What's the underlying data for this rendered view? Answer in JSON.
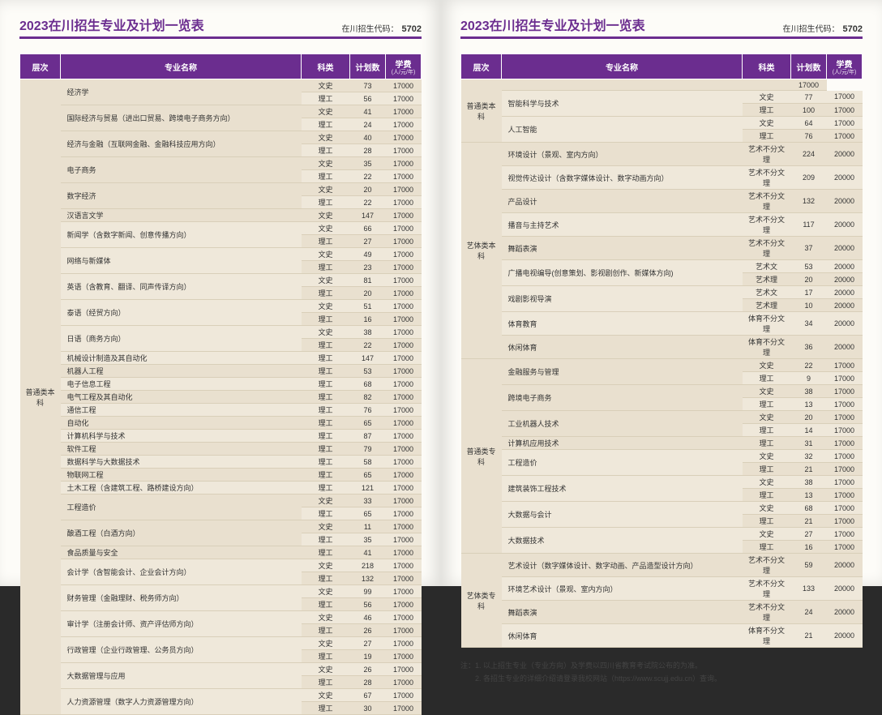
{
  "header": {
    "title": "2023在川招生专业及计划一览表",
    "code_label": "在川招生代码：",
    "code": "5702"
  },
  "columns": {
    "level": "层次",
    "major": "专业名称",
    "category": "科类",
    "plan": "计划数",
    "fee": "学费",
    "fee_sub": "(人/元/年)"
  },
  "left": {
    "level": "普通类本科",
    "rows": [
      {
        "major": "经济学",
        "cat": "文史",
        "plan": "73",
        "fee": "17000"
      },
      {
        "major": "",
        "cat": "理工",
        "plan": "56",
        "fee": "17000"
      },
      {
        "major": "国际经济与贸易（进出口贸易、跨境电子商务方向）",
        "cat": "文史",
        "plan": "41",
        "fee": "17000"
      },
      {
        "major": "",
        "cat": "理工",
        "plan": "24",
        "fee": "17000"
      },
      {
        "major": "经济与金融（互联网金融、金融科技应用方向）",
        "cat": "文史",
        "plan": "40",
        "fee": "17000"
      },
      {
        "major": "",
        "cat": "理工",
        "plan": "28",
        "fee": "17000"
      },
      {
        "major": "电子商务",
        "cat": "文史",
        "plan": "35",
        "fee": "17000"
      },
      {
        "major": "",
        "cat": "理工",
        "plan": "22",
        "fee": "17000"
      },
      {
        "major": "数字经济",
        "cat": "文史",
        "plan": "20",
        "fee": "17000"
      },
      {
        "major": "",
        "cat": "理工",
        "plan": "22",
        "fee": "17000"
      },
      {
        "major": "汉语言文学",
        "cat": "文史",
        "plan": "147",
        "fee": "17000"
      },
      {
        "major": "新闻学（含数字新闻、创意传播方向）",
        "cat": "文史",
        "plan": "66",
        "fee": "17000"
      },
      {
        "major": "",
        "cat": "理工",
        "plan": "27",
        "fee": "17000"
      },
      {
        "major": "网络与新媒体",
        "cat": "文史",
        "plan": "49",
        "fee": "17000"
      },
      {
        "major": "",
        "cat": "理工",
        "plan": "23",
        "fee": "17000"
      },
      {
        "major": "英语（含教育、翻译、同声传译方向）",
        "cat": "文史",
        "plan": "81",
        "fee": "17000"
      },
      {
        "major": "",
        "cat": "理工",
        "plan": "20",
        "fee": "17000"
      },
      {
        "major": "泰语（经贸方向）",
        "cat": "文史",
        "plan": "51",
        "fee": "17000"
      },
      {
        "major": "",
        "cat": "理工",
        "plan": "16",
        "fee": "17000"
      },
      {
        "major": "日语（商务方向）",
        "cat": "文史",
        "plan": "38",
        "fee": "17000"
      },
      {
        "major": "",
        "cat": "理工",
        "plan": "22",
        "fee": "17000"
      },
      {
        "major": "机械设计制造及其自动化",
        "cat": "理工",
        "plan": "147",
        "fee": "17000"
      },
      {
        "major": "机器人工程",
        "cat": "理工",
        "plan": "53",
        "fee": "17000"
      },
      {
        "major": "电子信息工程",
        "cat": "理工",
        "plan": "68",
        "fee": "17000"
      },
      {
        "major": "电气工程及其自动化",
        "cat": "理工",
        "plan": "82",
        "fee": "17000"
      },
      {
        "major": "通信工程",
        "cat": "理工",
        "plan": "76",
        "fee": "17000"
      },
      {
        "major": "自动化",
        "cat": "理工",
        "plan": "65",
        "fee": "17000"
      },
      {
        "major": "计算机科学与技术",
        "cat": "理工",
        "plan": "87",
        "fee": "17000"
      },
      {
        "major": "软件工程",
        "cat": "理工",
        "plan": "79",
        "fee": "17000"
      },
      {
        "major": "数据科学与大数据技术",
        "cat": "理工",
        "plan": "58",
        "fee": "17000"
      },
      {
        "major": "物联网工程",
        "cat": "理工",
        "plan": "65",
        "fee": "17000"
      },
      {
        "major": "土木工程（含建筑工程、路桥建设方向）",
        "cat": "理工",
        "plan": "121",
        "fee": "17000"
      },
      {
        "major": "工程造价",
        "cat": "文史",
        "plan": "33",
        "fee": "17000"
      },
      {
        "major": "",
        "cat": "理工",
        "plan": "65",
        "fee": "17000"
      },
      {
        "major": "酿酒工程（白酒方向）",
        "cat": "文史",
        "plan": "11",
        "fee": "17000"
      },
      {
        "major": "",
        "cat": "理工",
        "plan": "35",
        "fee": "17000"
      },
      {
        "major": "食品质量与安全",
        "cat": "理工",
        "plan": "41",
        "fee": "17000"
      },
      {
        "major": "会计学（含智能会计、企业会计方向）",
        "cat": "文史",
        "plan": "218",
        "fee": "17000"
      },
      {
        "major": "",
        "cat": "理工",
        "plan": "132",
        "fee": "17000"
      },
      {
        "major": "财务管理（金融理财、税务师方向）",
        "cat": "文史",
        "plan": "99",
        "fee": "17000"
      },
      {
        "major": "",
        "cat": "理工",
        "plan": "56",
        "fee": "17000"
      },
      {
        "major": "审计学（注册会计师、资产评估师方向）",
        "cat": "文史",
        "plan": "46",
        "fee": "17000"
      },
      {
        "major": "",
        "cat": "理工",
        "plan": "26",
        "fee": "17000"
      },
      {
        "major": "行政管理（企业行政管理、公务员方向）",
        "cat": "文史",
        "plan": "27",
        "fee": "17000"
      },
      {
        "major": "",
        "cat": "理工",
        "plan": "19",
        "fee": "17000"
      },
      {
        "major": "大数据管理与应用",
        "cat": "文史",
        "plan": "26",
        "fee": "17000"
      },
      {
        "major": "",
        "cat": "理工",
        "plan": "28",
        "fee": "17000"
      },
      {
        "major": "人力资源管理（数字人力资源管理方向）",
        "cat": "文史",
        "plan": "67",
        "fee": "17000"
      },
      {
        "major": "",
        "cat": "理工",
        "plan": "30",
        "fee": "17000"
      }
    ]
  },
  "right": {
    "groups": [
      {
        "level": "普通类本科",
        "rows": [
          {
            "major": "",
            "cat": "",
            "plan": "",
            "fee": "17000"
          },
          {
            "major": "智能科学与技术",
            "cat": "文史",
            "plan": "77",
            "fee": "17000"
          },
          {
            "major": "",
            "cat": "理工",
            "plan": "100",
            "fee": "17000"
          },
          {
            "major": "人工智能",
            "cat": "文史",
            "plan": "64",
            "fee": "17000"
          },
          {
            "major": "",
            "cat": "理工",
            "plan": "76",
            "fee": "17000"
          }
        ]
      },
      {
        "level": "艺体类本科",
        "rows": [
          {
            "major": "环境设计（景观、室内方向）",
            "cat": "艺术不分文理",
            "plan": "224",
            "fee": "20000"
          },
          {
            "major": "视觉传达设计（含数字媒体设计、数字动画方向）",
            "cat": "艺术不分文理",
            "plan": "209",
            "fee": "20000"
          },
          {
            "major": "产品设计",
            "cat": "艺术不分文理",
            "plan": "132",
            "fee": "20000"
          },
          {
            "major": "播音与主持艺术",
            "cat": "艺术不分文理",
            "plan": "117",
            "fee": "20000"
          },
          {
            "major": "舞蹈表演",
            "cat": "艺术不分文理",
            "plan": "37",
            "fee": "20000"
          },
          {
            "major": "广播电视编导(创意策划、影视剧创作、新媒体方向)",
            "cat": "艺术文",
            "plan": "53",
            "fee": "20000"
          },
          {
            "major": "",
            "cat": "艺术理",
            "plan": "20",
            "fee": "20000"
          },
          {
            "major": "戏剧影视导演",
            "cat": "艺术文",
            "plan": "17",
            "fee": "20000"
          },
          {
            "major": "",
            "cat": "艺术理",
            "plan": "10",
            "fee": "20000"
          },
          {
            "major": "体育教育",
            "cat": "体育不分文理",
            "plan": "34",
            "fee": "20000"
          },
          {
            "major": "休闲体育",
            "cat": "体育不分文理",
            "plan": "36",
            "fee": "20000"
          }
        ]
      },
      {
        "level": "普通类专科",
        "rows": [
          {
            "major": "金融服务与管理",
            "cat": "文史",
            "plan": "22",
            "fee": "17000"
          },
          {
            "major": "",
            "cat": "理工",
            "plan": "9",
            "fee": "17000"
          },
          {
            "major": "跨境电子商务",
            "cat": "文史",
            "plan": "38",
            "fee": "17000"
          },
          {
            "major": "",
            "cat": "理工",
            "plan": "13",
            "fee": "17000"
          },
          {
            "major": "工业机器人技术",
            "cat": "文史",
            "plan": "20",
            "fee": "17000"
          },
          {
            "major": "",
            "cat": "理工",
            "plan": "14",
            "fee": "17000"
          },
          {
            "major": "计算机应用技术",
            "cat": "理工",
            "plan": "31",
            "fee": "17000"
          },
          {
            "major": "工程造价",
            "cat": "文史",
            "plan": "32",
            "fee": "17000"
          },
          {
            "major": "",
            "cat": "理工",
            "plan": "21",
            "fee": "17000"
          },
          {
            "major": "建筑装饰工程技术",
            "cat": "文史",
            "plan": "38",
            "fee": "17000"
          },
          {
            "major": "",
            "cat": "理工",
            "plan": "13",
            "fee": "17000"
          },
          {
            "major": "大数据与会计",
            "cat": "文史",
            "plan": "68",
            "fee": "17000"
          },
          {
            "major": "",
            "cat": "理工",
            "plan": "21",
            "fee": "17000"
          },
          {
            "major": "大数据技术",
            "cat": "文史",
            "plan": "27",
            "fee": "17000"
          },
          {
            "major": "",
            "cat": "理工",
            "plan": "16",
            "fee": "17000"
          }
        ]
      },
      {
        "level": "艺体类专科",
        "rows": [
          {
            "major": "艺术设计（数字媒体设计、数字动画、产品造型设计方向）",
            "cat": "艺术不分文理",
            "plan": "59",
            "fee": "20000"
          },
          {
            "major": "环境艺术设计（景观、室内方向）",
            "cat": "艺术不分文理",
            "plan": "133",
            "fee": "20000"
          },
          {
            "major": "舞蹈表演",
            "cat": "艺术不分文理",
            "plan": "24",
            "fee": "20000"
          },
          {
            "major": "休闲体育",
            "cat": "体育不分文理",
            "plan": "21",
            "fee": "20000"
          }
        ]
      }
    ],
    "notes": [
      "注：1. 以上招生专业（专业方向）及学费以四川省教育考试院公布的为准。",
      "　　2. 各招生专业的详细介绍请登录我校网站（https://www.scujj.edu.cn）查询。"
    ]
  }
}
